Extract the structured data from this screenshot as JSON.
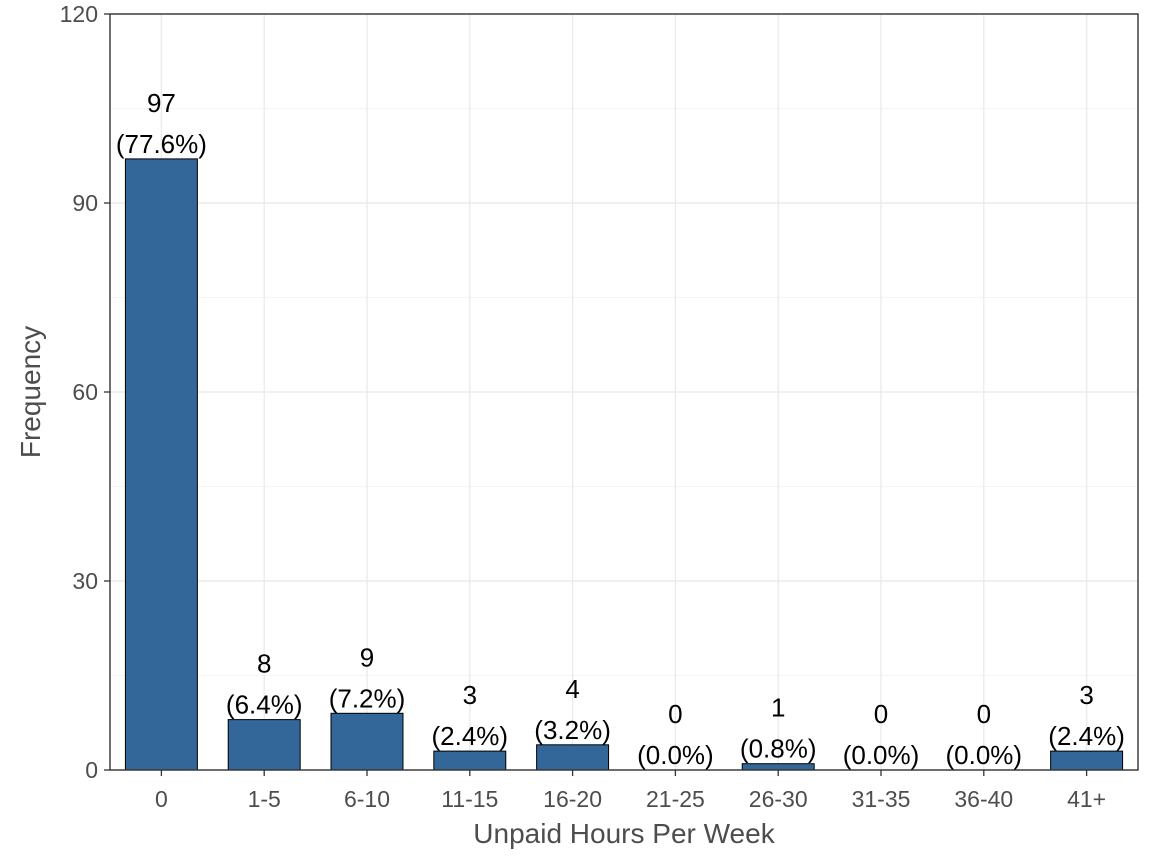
{
  "chart_data": {
    "type": "bar",
    "xlabel": "Unpaid Hours Per Week",
    "ylabel": "Frequency",
    "categories": [
      "0",
      "1-5",
      "6-10",
      "11-15",
      "16-20",
      "21-25",
      "26-30",
      "31-35",
      "36-40",
      "41+"
    ],
    "values": [
      97,
      8,
      9,
      3,
      4,
      0,
      1,
      0,
      0,
      3
    ],
    "percent_labels": [
      "(77.6%)",
      "(6.4%)",
      "(7.2%)",
      "(2.4%)",
      "(3.2%)",
      "(0.0%)",
      "(0.8%)",
      "(0.0%)",
      "(0.0%)",
      "(2.4%)"
    ],
    "ylim": [
      0,
      120
    ],
    "yticks": [
      "0",
      "30",
      "60",
      "90",
      "120"
    ],
    "grid": true,
    "bar_color": "#336699",
    "bar_outline": "#000000"
  }
}
